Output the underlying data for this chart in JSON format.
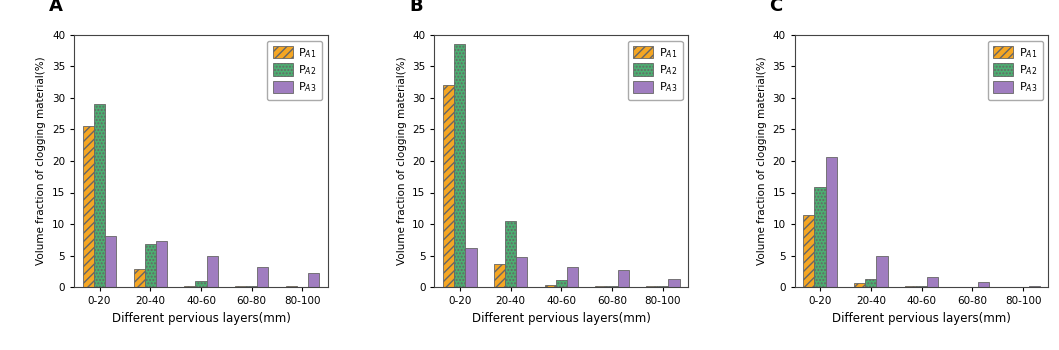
{
  "panels": [
    "A",
    "B",
    "C"
  ],
  "categories": [
    "0-20",
    "20-40",
    "40-60",
    "60-80",
    "80-100"
  ],
  "xlabel": "Different pervious layers(mm)",
  "ylabel": "Volume fraction of clogging material(%)",
  "ylim": [
    0,
    40
  ],
  "yticks": [
    0,
    5,
    10,
    15,
    20,
    25,
    30,
    35,
    40
  ],
  "legend_labels": [
    "P$_{A1}$",
    "P$_{A2}$",
    "P$_{A3}$"
  ],
  "colors": [
    "#F5A623",
    "#4CAF72",
    "#A07DC0"
  ],
  "hatch_patterns": [
    "////",
    ".....",
    ""
  ],
  "data": {
    "A": {
      "PA1": [
        25.5,
        2.8,
        0.2,
        0.1,
        0.1
      ],
      "PA2": [
        29.0,
        6.9,
        0.9,
        0.15,
        0.0
      ],
      "PA3": [
        8.1,
        7.3,
        5.0,
        3.2,
        2.2
      ]
    },
    "B": {
      "PA1": [
        32.0,
        3.7,
        0.3,
        0.1,
        0.1
      ],
      "PA2": [
        38.5,
        10.5,
        1.1,
        0.2,
        0.1
      ],
      "PA3": [
        6.2,
        4.8,
        3.1,
        2.7,
        1.3
      ]
    },
    "C": {
      "PA1": [
        11.5,
        0.6,
        0.1,
        0.0,
        0.0
      ],
      "PA2": [
        15.8,
        1.3,
        0.1,
        0.0,
        0.0
      ],
      "PA3": [
        20.7,
        5.0,
        1.6,
        0.8,
        0.1
      ]
    }
  }
}
